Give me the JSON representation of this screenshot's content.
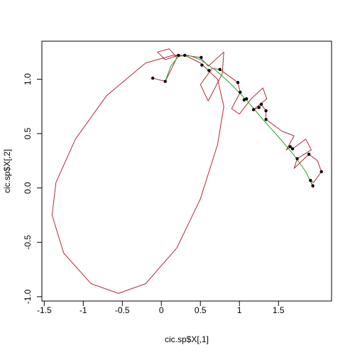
{
  "chart_data": {
    "type": "line",
    "x_label": "cic.sp$X[,1]",
    "y_label": "cic.sp$X[,2]",
    "xlim": [
      -1.53,
      2.18
    ],
    "ylim": [
      -1.04,
      1.35
    ],
    "xticks": [
      1.5,
      1.0,
      0.5,
      0.0,
      -0.5,
      -1.0,
      -1.5
    ],
    "yticks": [
      {
        "value": -1,
        "label": "-1.0"
      },
      -0.5,
      {
        "value": 0,
        "label": "0.0"
      },
      0.5,
      {
        "value": 1,
        "label": "1.0"
      }
    ],
    "series": [
      {
        "style": "line",
        "color": "#b22a3a",
        "x": [
          -0.11,
          0.05,
          0.12,
          0.2,
          0.1,
          -0.05,
          0.05,
          0.22,
          0.3,
          0.15,
          -0.2,
          -0.7,
          -1.1,
          -1.35,
          -1.4,
          -1.25,
          -0.9,
          -0.55,
          -0.2,
          0.2,
          0.5,
          0.72,
          0.8,
          0.72,
          0.5,
          0.3,
          0.5,
          0.6,
          0.8,
          0.78,
          0.6,
          0.5,
          0.65,
          0.75,
          0.98,
          1.01,
          0.9,
          1.0,
          1.15,
          1.3,
          1.35,
          1.18,
          1.25,
          1.28,
          1.34,
          1.34,
          1.55,
          1.7,
          1.6,
          1.65,
          1.68,
          1.85,
          1.92,
          1.74,
          1.7,
          1.89,
          2.0,
          2.05,
          1.95,
          1.91,
          1.94
        ],
        "values": [
          1.01,
          0.98,
          1.08,
          1.2,
          1.28,
          1.25,
          1.18,
          1.22,
          1.22,
          1.22,
          1.15,
          0.85,
          0.45,
          0.05,
          -0.25,
          -0.6,
          -0.88,
          -0.97,
          -0.88,
          -0.55,
          -0.1,
          0.4,
          0.75,
          1.0,
          1.15,
          1.22,
          1.2,
          1.12,
          1.25,
          1.05,
          0.8,
          0.95,
          1.1,
          1.09,
          0.97,
          0.88,
          0.73,
          0.68,
          0.82,
          0.92,
          0.82,
          0.72,
          0.74,
          0.77,
          0.71,
          0.63,
          0.52,
          0.48,
          0.35,
          0.38,
          0.36,
          0.45,
          0.35,
          0.27,
          0.18,
          0.31,
          0.25,
          0.15,
          0.05,
          0.07,
          0.02
        ]
      },
      {
        "style": "line",
        "color": "#22aa22",
        "x": [
          0.05,
          0.12,
          0.22,
          0.35,
          0.5,
          0.7,
          0.9,
          1.1,
          1.3,
          1.5,
          1.7,
          1.85,
          1.95
        ],
        "values": [
          0.98,
          1.12,
          1.21,
          1.22,
          1.18,
          1.08,
          0.95,
          0.8,
          0.63,
          0.47,
          0.3,
          0.15,
          0.0
        ]
      },
      {
        "style": "points",
        "color": "#000000",
        "x": [
          -0.11,
          0.05,
          0.22,
          0.3,
          0.51,
          0.52,
          0.61,
          0.75,
          0.98,
          1.01,
          1.06,
          1.09,
          1.18,
          1.25,
          1.28,
          1.34,
          1.34,
          1.65,
          1.68,
          1.74,
          1.89,
          1.91,
          1.94,
          2.05
        ],
        "values": [
          1.01,
          0.98,
          1.22,
          1.22,
          1.2,
          1.13,
          1.08,
          1.09,
          0.97,
          0.88,
          0.81,
          0.82,
          0.72,
          0.74,
          0.77,
          0.71,
          0.63,
          0.38,
          0.36,
          0.27,
          0.31,
          0.07,
          0.02,
          0.15
        ]
      }
    ]
  }
}
